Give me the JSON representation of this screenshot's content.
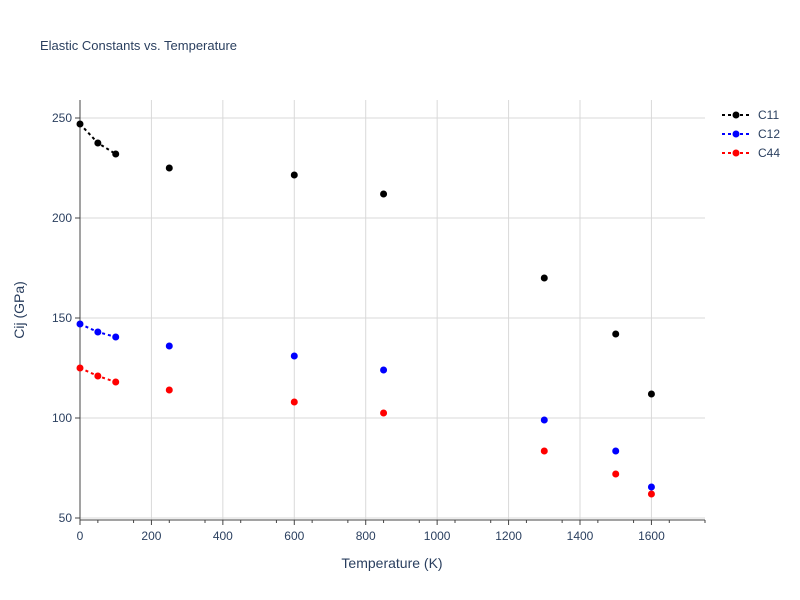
{
  "chart_data": {
    "type": "scatter",
    "title": "Elastic Constants vs. Temperature",
    "xlabel": "Temperature (K)",
    "ylabel": "Cij (GPa)",
    "xlim": [
      0,
      1750
    ],
    "ylim": [
      49,
      259
    ],
    "xticks": [
      0,
      200,
      400,
      600,
      800,
      1000,
      1200,
      1400,
      1600
    ],
    "yticks": [
      50,
      100,
      150,
      200,
      250
    ],
    "grid": true,
    "legend_position": "top-right",
    "series": [
      {
        "name": "C11",
        "color": "#000000",
        "x": [
          0,
          50,
          100,
          250,
          600,
          850,
          1300,
          1500,
          1600
        ],
        "y": [
          247,
          237.5,
          232,
          225,
          221.5,
          212,
          170,
          142,
          112
        ],
        "line_through_first": 3
      },
      {
        "name": "C12",
        "color": "#0000ff",
        "x": [
          0,
          50,
          100,
          250,
          600,
          850,
          1300,
          1500,
          1600
        ],
        "y": [
          147,
          143,
          140.5,
          136,
          131,
          124,
          99,
          83.5,
          65.5
        ],
        "line_through_first": 3
      },
      {
        "name": "C44",
        "color": "#ff0000",
        "x": [
          0,
          50,
          100,
          250,
          600,
          850,
          1300,
          1500,
          1600
        ],
        "y": [
          125,
          121,
          118,
          114,
          108,
          102.5,
          83.5,
          72,
          62
        ],
        "line_through_first": 3
      }
    ]
  }
}
